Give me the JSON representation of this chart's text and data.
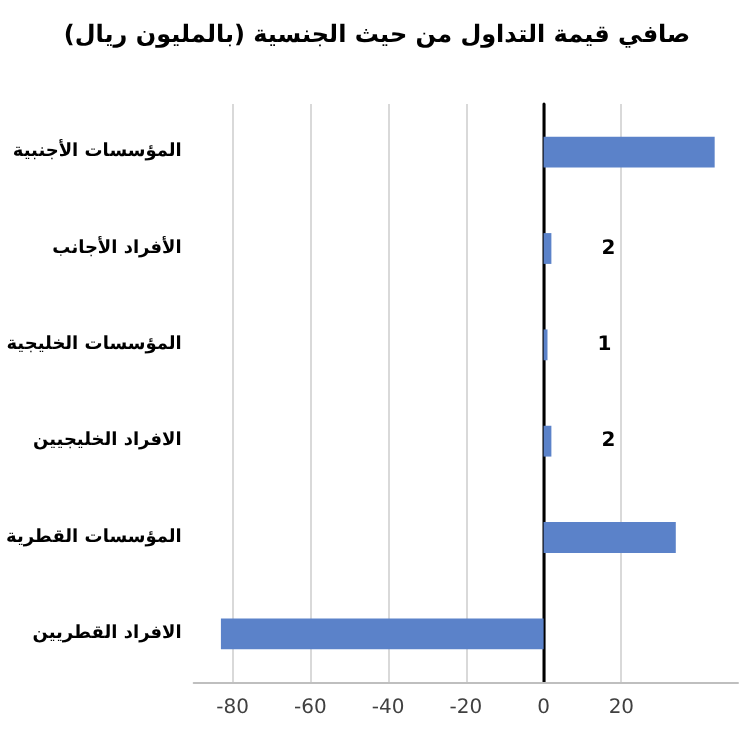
{
  "chart_data": {
    "type": "bar",
    "orientation": "horizontal",
    "title": "صافي قيمة التداول من حيث الجنسية (بالمليون ريال)",
    "categories": [
      "المؤسسات الأجنبية",
      "الأفراد الأجانب",
      "المؤسسات الخليجية",
      "الافراد الخليجيين",
      "المؤسسات القطرية",
      "الافراد القطريين"
    ],
    "values": [
      44,
      2,
      1,
      2,
      34,
      -83
    ],
    "value_labels": [
      null,
      "2",
      "1",
      "2",
      null,
      null
    ],
    "color": "#5b82c9",
    "xlim": [
      -90,
      50
    ],
    "xticks": [
      -80,
      -60,
      -40,
      -20,
      0,
      20
    ],
    "grid": "x"
  }
}
